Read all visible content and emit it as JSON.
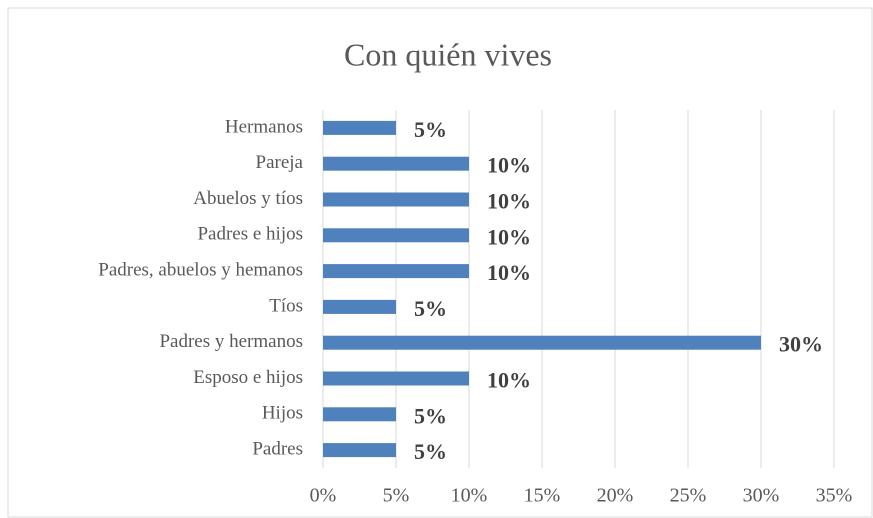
{
  "chart_data": {
    "type": "bar",
    "orientation": "horizontal",
    "title": "Con quién vives",
    "categories": [
      "Hermanos",
      "Pareja",
      "Abuelos y tíos",
      "Padres e hijos",
      "Padres, abuelos y hemanos",
      "Tíos",
      "Padres y hermanos",
      "Esposo e hijos",
      "Hijos",
      "Padres"
    ],
    "values": [
      5,
      10,
      10,
      10,
      10,
      5,
      30,
      10,
      5,
      5
    ],
    "value_labels": [
      "5%",
      "10%",
      "10%",
      "10%",
      "10%",
      "5%",
      "30%",
      "10%",
      "5%",
      "5%"
    ],
    "color": "#4f81bd",
    "xlim": [
      0,
      35
    ],
    "xticks": [
      {
        "value": 0,
        "label": "0%"
      },
      {
        "value": 5,
        "label": "5%"
      },
      {
        "value": 10,
        "label": "10%"
      },
      {
        "value": 15,
        "label": "15%"
      },
      {
        "value": 20,
        "label": "20%"
      },
      {
        "value": 25,
        "label": "25%"
      },
      {
        "value": 30,
        "label": "30%"
      },
      {
        "value": 35,
        "label": "35%"
      }
    ],
    "grid": true
  }
}
